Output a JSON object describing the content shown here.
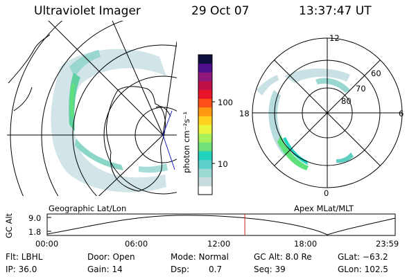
{
  "header": {
    "title": "Ultraviolet Imager",
    "date": "29 Oct 07",
    "time": "13:37:47 UT"
  },
  "colorbar": {
    "unit_label": "photon cm⁻²s⁻¹",
    "ticks": [
      "100",
      "10"
    ],
    "colors": [
      "#ffffff",
      "#c8dce0",
      "#9cd8d2",
      "#5ccfc8",
      "#22d3c0",
      "#6fe07a",
      "#a8f05a",
      "#e8f53c",
      "#ffd21e",
      "#ff9914",
      "#ff4e18",
      "#e81428",
      "#c01048",
      "#90187a",
      "#50108c",
      "#101040"
    ]
  },
  "left_panel": {
    "caption": "Geographic Lat/Lon"
  },
  "right_panel": {
    "caption": "Apex MLat/MLT",
    "mlt_labels": [
      "12",
      "18",
      "6",
      "0"
    ],
    "mlat_labels": [
      "60",
      "70",
      "80"
    ]
  },
  "timeline": {
    "ylabel": "GC Alt",
    "y_ticks": [
      "9.0",
      "1.8"
    ],
    "x_ticks": [
      "00:00",
      "06:00",
      "12:00",
      "18:00",
      "23:59"
    ],
    "current_time_hours": 13.63
  },
  "info": {
    "filter": "Flt: LBHL",
    "ip": "IP: 36.0",
    "door": "Door: Open",
    "gain": "Gain: 14",
    "mode": "Mode: Normal",
    "dsp_label": "Dsp:",
    "dsp_value": "0.7",
    "gc_alt": "GC Alt: 8.0 Re",
    "seq": "Seq: 39",
    "glat": "GLat: −63.2",
    "glon": "GLon: 102.5"
  }
}
